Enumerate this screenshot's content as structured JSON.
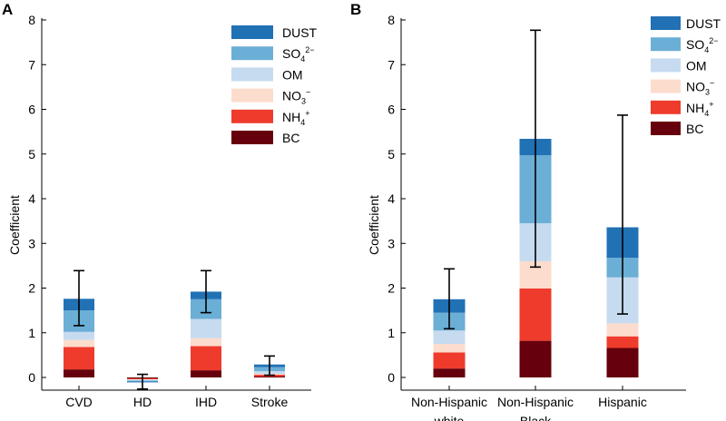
{
  "colors": {
    "BC": "#67000d",
    "NH4": "#ef3b2c",
    "NO3": "#fcdccd",
    "OM": "#c6dbef",
    "SO4": "#6baed6",
    "DUST": "#2171b5",
    "axis": "#000000"
  },
  "legend_order": [
    "DUST",
    "SO4",
    "OM",
    "NO3",
    "NH4",
    "BC"
  ],
  "legend_labels": {
    "DUST": {
      "base": "DUST",
      "sub": "",
      "sup": ""
    },
    "SO4": {
      "base": "SO",
      "sub": "4",
      "sup": "2−"
    },
    "OM": {
      "base": "OM",
      "sub": "",
      "sup": ""
    },
    "NO3": {
      "base": "NO",
      "sub": "3",
      "sup": "−"
    },
    "NH4": {
      "base": "NH",
      "sub": "4",
      "sup": "+"
    },
    "BC": {
      "base": "BC",
      "sub": "",
      "sup": ""
    }
  },
  "chart_data": [
    {
      "panel": "A",
      "type": "bar",
      "stacked": true,
      "ylabel": "Coefficient",
      "xlabel": "",
      "ylim": [
        0,
        8
      ],
      "yticks": [
        "0",
        "1",
        "2",
        "3",
        "4",
        "5",
        "6",
        "7",
        "8"
      ],
      "categories": [
        {
          "label": [
            "CVD"
          ]
        },
        {
          "label": [
            "HD"
          ]
        },
        {
          "label": [
            "IHD"
          ]
        },
        {
          "label": [
            "Stroke"
          ]
        }
      ],
      "series": [
        {
          "key": "BC",
          "name": "BC",
          "values": [
            0.18,
            -0.02,
            0.16,
            0.02
          ]
        },
        {
          "key": "NH4",
          "name": "NH4+",
          "values": [
            0.5,
            -0.02,
            0.54,
            0.04
          ]
        },
        {
          "key": "NO3",
          "name": "NO3−",
          "values": [
            0.16,
            -0.01,
            0.18,
            0.02
          ]
        },
        {
          "key": "OM",
          "name": "OM",
          "values": [
            0.18,
            -0.02,
            0.43,
            0.06
          ]
        },
        {
          "key": "SO4",
          "name": "SO42−",
          "values": [
            0.48,
            -0.02,
            0.44,
            0.09
          ]
        },
        {
          "key": "DUST",
          "name": "DUST",
          "values": [
            0.26,
            -0.02,
            0.17,
            0.06
          ]
        }
      ],
      "error_bars": [
        {
          "low": 1.16,
          "high": 2.39
        },
        {
          "low": -0.26,
          "high": 0.07
        },
        {
          "low": 1.45,
          "high": 2.39
        },
        {
          "low": 0.05,
          "high": 0.48
        }
      ],
      "legend_position": "top-right"
    },
    {
      "panel": "B",
      "type": "bar",
      "stacked": true,
      "ylabel": "Coefficient",
      "xlabel": "",
      "ylim": [
        0,
        8
      ],
      "yticks": [
        "0",
        "1",
        "2",
        "3",
        "4",
        "5",
        "6",
        "7",
        "8"
      ],
      "categories": [
        {
          "label": [
            "Non-Hispanic",
            "white"
          ]
        },
        {
          "label": [
            "Non-Hispanic",
            "Black"
          ]
        },
        {
          "label": [
            "Hispanic"
          ]
        }
      ],
      "series": [
        {
          "key": "BC",
          "name": "BC",
          "values": [
            0.2,
            0.82,
            0.66
          ]
        },
        {
          "key": "NH4",
          "name": "NH4+",
          "values": [
            0.36,
            1.17,
            0.26
          ]
        },
        {
          "key": "NO3",
          "name": "NO3−",
          "values": [
            0.19,
            0.61,
            0.29
          ]
        },
        {
          "key": "OM",
          "name": "OM",
          "values": [
            0.3,
            0.85,
            1.03
          ]
        },
        {
          "key": "SO4",
          "name": "SO42−",
          "values": [
            0.4,
            1.52,
            0.44
          ]
        },
        {
          "key": "DUST",
          "name": "DUST",
          "values": [
            0.3,
            0.37,
            0.68
          ]
        }
      ],
      "error_bars": [
        {
          "low": 1.09,
          "high": 2.43
        },
        {
          "low": 2.47,
          "high": 7.77
        },
        {
          "low": 1.42,
          "high": 5.87
        }
      ],
      "legend_position": "top-right"
    }
  ]
}
